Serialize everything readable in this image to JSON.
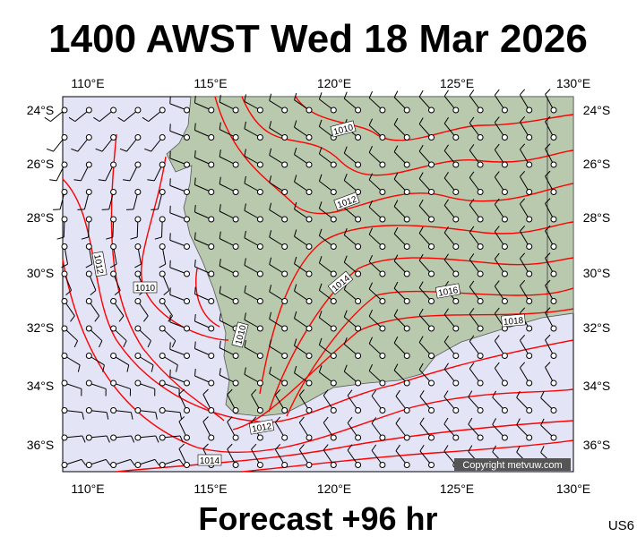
{
  "header": {
    "title": "1400 AWST Wed 18 Mar 2026"
  },
  "map": {
    "lon_labels": [
      "110°E",
      "115°E",
      "120°E",
      "125°E",
      "130°E"
    ],
    "lat_labels": [
      "24°S",
      "26°S",
      "28°S",
      "30°S",
      "32°S",
      "34°S",
      "36°S"
    ],
    "isobar_labels": [
      "1010",
      "1012",
      "1014",
      "1016",
      "1018",
      "1010",
      "1012",
      "1010",
      "1012",
      "1014"
    ],
    "copyright": "Copyright metvuw.com"
  },
  "footer": {
    "forecast": "Forecast +96 hr",
    "code": "US6"
  }
}
